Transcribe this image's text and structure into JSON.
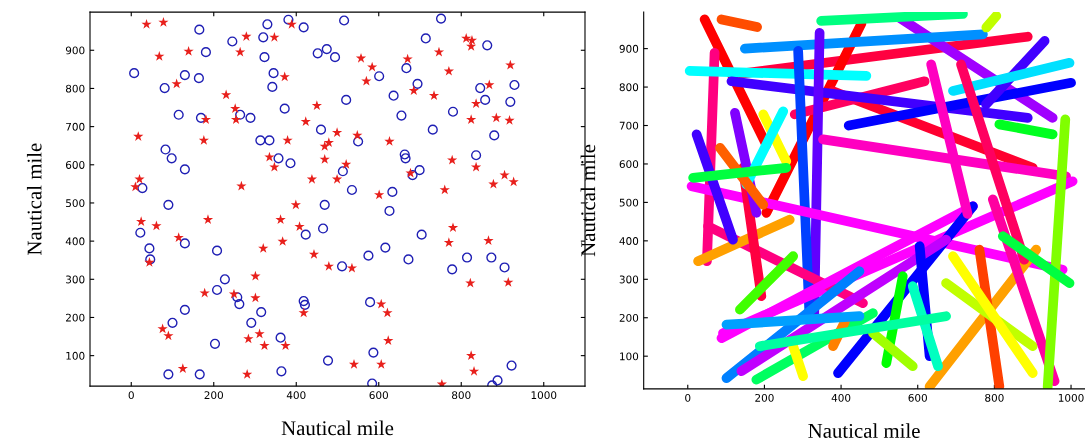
{
  "chart_data": [
    {
      "type": "scatter",
      "xlabel": "Nautical mile",
      "ylabel": "Nautical mile",
      "xlim": [
        -100,
        1100
      ],
      "ylim": [
        20,
        1000
      ],
      "xticks": [
        0,
        200,
        400,
        600,
        800,
        1000
      ],
      "yticks": [
        100,
        200,
        300,
        400,
        500,
        600,
        700,
        800,
        900
      ],
      "grid": false,
      "series": [
        {
          "type": "scatter",
          "marker": "circle",
          "color": "#1f1fb4",
          "x": [
            165,
            245,
            320,
            330,
            381,
            418,
            181,
            323,
            452,
            474,
            494,
            7,
            130,
            164,
            81,
            345,
            342,
            115,
            169,
            264,
            289,
            372,
            460,
            313,
            335,
            83,
            98,
            130,
            357,
            386,
            27,
            90,
            469,
            516,
            751,
            714,
            863,
            667,
            601,
            694,
            636,
            521,
            846,
            858,
            929,
            919,
            655,
            780,
            731,
            550,
            880,
            663,
            665,
            836,
            699,
            682,
            513,
            535,
            633,
            22,
            44,
            46,
            130,
            208,
            227,
            208,
            257,
            262,
            315,
            130,
            100,
            291,
            362,
            203,
            423,
            465,
            418,
            421,
            90,
            166,
            364,
            477,
            626,
            704,
            616,
            575,
            672,
            511,
            814,
            873,
            905,
            778,
            579,
            587,
            922,
            888,
            875,
            584
          ],
          "values": [
            954,
            923,
            934,
            968,
            980,
            960,
            895,
            882,
            892,
            903,
            882,
            840,
            835,
            827,
            801,
            840,
            804,
            731,
            723,
            731,
            723,
            747,
            692,
            664,
            664,
            640,
            617,
            588,
            617,
            604,
            539,
            495,
            495,
            978,
            983,
            931,
            913,
            853,
            832,
            812,
            781,
            770,
            801,
            770,
            809,
            765,
            729,
            739,
            692,
            661,
            677,
            627,
            617,
            625,
            586,
            573,
            583,
            534,
            529,
            422,
            381,
            352,
            394,
            375,
            300,
            272,
            253,
            235,
            214,
            220,
            186,
            186,
            147,
            131,
            417,
            433,
            243,
            233,
            51,
            51,
            59,
            87,
            479,
            417,
            383,
            362,
            352,
            334,
            357,
            357,
            331,
            326,
            240,
            108,
            74,
            35,
            22,
            27
          ]
        },
        {
          "type": "scatter",
          "marker": "star",
          "color": "#e8201c",
          "x": [
            37,
            78,
            68,
            139,
            264,
            279,
            347,
            389,
            372,
            110,
            230,
            252,
            254,
            181,
            450,
            423,
            499,
            17,
            176,
            379,
            469,
            479,
            469,
            335,
            347,
            438,
            499,
            20,
            10,
            267,
            399,
            812,
            826,
            824,
            557,
            670,
            746,
            584,
            770,
            919,
            570,
            685,
            734,
            868,
            836,
            824,
            885,
            917,
            548,
            626,
            778,
            836,
            521,
            677,
            905,
            878,
            927,
            601,
            760,
            24,
            61,
            186,
            115,
            44,
            362,
            408,
            367,
            320,
            443,
            479,
            301,
            178,
            249,
            301,
            418,
            76,
            90,
            311,
            284,
            323,
            374,
            125,
            281,
            780,
            770,
            866,
            535,
            822,
            914,
            606,
            621,
            623,
            540,
            606,
            824,
            831,
            753
          ],
          "values": [
            968,
            973,
            884,
            897,
            895,
            936,
            934,
            968,
            830,
            812,
            783,
            747,
            718,
            718,
            755,
            713,
            684,
            674,
            664,
            664,
            648,
            658,
            614,
            620,
            594,
            562,
            562,
            562,
            542,
            544,
            495,
            931,
            926,
            910,
            879,
            877,
            895,
            856,
            845,
            861,
            819,
            794,
            781,
            809,
            760,
            718,
            723,
            716,
            677,
            661,
            612,
            594,
            601,
            578,
            573,
            549,
            555,
            521,
            534,
            451,
            440,
            456,
            409,
            344,
            456,
            438,
            399,
            381,
            365,
            334,
            308,
            264,
            261,
            251,
            212,
            170,
            152,
            157,
            144,
            126,
            126,
            66,
            51,
            435,
            396,
            401,
            329,
            290,
            292,
            235,
            212,
            139,
            77,
            77,
            100,
            59,
            25
          ]
        }
      ]
    },
    {
      "type": "line",
      "xlabel": "Nautical mile",
      "ylabel": "Nautical mile",
      "xlim": [
        -115,
        1035
      ],
      "ylim": [
        15,
        995
      ],
      "xticks": [
        0,
        200,
        400,
        600,
        800,
        1000
      ],
      "yticks": [
        100,
        200,
        300,
        400,
        500,
        600,
        700,
        800,
        900
      ],
      "grid": false,
      "marker": "none",
      "line_style": "solid",
      "series": [
        {
          "x": [
            88,
            181
          ],
          "values": [
            976,
            956
          ],
          "color": "#ff4d00"
        },
        {
          "x": [
            44,
            205
          ],
          "values": [
            976,
            650
          ],
          "color": "#ff0000"
        },
        {
          "x": [
            70,
            50
          ],
          "values": [
            889,
            347
          ],
          "color": "#ff0080"
        },
        {
          "x": [
            140,
            887
          ],
          "values": [
            835,
            931
          ],
          "color": "#ff0040"
        },
        {
          "x": [
            453,
            205
          ],
          "values": [
            965,
            473
          ],
          "color": "#ff0000"
        },
        {
          "x": [
            379,
            900
          ],
          "values": [
            789,
            590
          ],
          "color": "#ff0030"
        },
        {
          "x": [
            279,
            618
          ],
          "values": [
            729,
            815
          ],
          "color": "#ff0060"
        },
        {
          "x": [
            553,
            952
          ],
          "values": [
            980,
            720
          ],
          "color": "#a000ff"
        },
        {
          "x": [
            348,
            718
          ],
          "values": [
            972,
            990
          ],
          "color": "#00ff80"
        },
        {
          "x": [
            149,
            770
          ],
          "values": [
            900,
            937
          ],
          "color": "#0090ff"
        },
        {
          "x": [
            5,
            466
          ],
          "values": [
            842,
            829
          ],
          "color": "#00ffff"
        },
        {
          "x": [
            114,
            887
          ],
          "values": [
            815,
            720
          ],
          "color": "#4000ff"
        },
        {
          "x": [
            1000,
            420
          ],
          "values": [
            811,
            700
          ],
          "color": "#0000ff"
        },
        {
          "x": [
            931,
            778
          ],
          "values": [
            920,
            755
          ],
          "color": "#4000ff"
        },
        {
          "x": [
            996,
            692
          ],
          "values": [
            863,
            790
          ],
          "color": "#00e0ff"
        },
        {
          "x": [
            344,
            330
          ],
          "values": [
            941,
            210
          ],
          "color": "#6000ff"
        },
        {
          "x": [
            288,
            318
          ],
          "values": [
            894,
            195
          ],
          "color": "#0040ff"
        },
        {
          "x": [
            353,
            987
          ],
          "values": [
            664,
            568
          ],
          "color": "#ff00c0"
        },
        {
          "x": [
            10,
            978
          ],
          "values": [
            542,
            325
          ],
          "color": "#ff00ff"
        },
        {
          "x": [
            1004,
            92
          ],
          "values": [
            555,
            160
          ],
          "color": "#ff00ff"
        },
        {
          "x": [
            53,
            457
          ],
          "values": [
            438,
            238
          ],
          "color": "#ff0080"
        },
        {
          "x": [
            88,
            744
          ],
          "values": [
            147,
            490
          ],
          "color": "#ff00ff"
        },
        {
          "x": [
            392,
            744
          ],
          "values": [
            56,
            490
          ],
          "color": "#0000ff"
        },
        {
          "x": [
            101,
            448
          ],
          "values": [
            43,
            321
          ],
          "color": "#0080ff"
        },
        {
          "x": [
            140,
            674
          ],
          "values": [
            61,
            403
          ],
          "color": "#c000ff"
        },
        {
          "x": [
            179,
            483
          ],
          "values": [
            39,
            212
          ],
          "color": "#00ff60"
        },
        {
          "x": [
            631,
            909
          ],
          "values": [
            21,
            377
          ],
          "color": "#ffa000"
        },
        {
          "x": [
            813,
            761
          ],
          "values": [
            21,
            377
          ],
          "color": "#ff4000"
        },
        {
          "x": [
            674,
            900
          ],
          "values": [
            290,
            126
          ],
          "color": "#c0ff00"
        },
        {
          "x": [
            692,
            900
          ],
          "values": [
            360,
            56
          ],
          "color": "#ffff00"
        },
        {
          "x": [
            796,
            957
          ],
          "values": [
            508,
            35
          ],
          "color": "#ff00a0"
        },
        {
          "x": [
            985,
            939
          ],
          "values": [
            716,
            20
          ],
          "color": "#80ff00"
        },
        {
          "x": [
            605,
            631
          ],
          "values": [
            386,
            100
          ],
          "color": "#0000ff"
        },
        {
          "x": [
            653,
            587
          ],
          "values": [
            74,
            282
          ],
          "color": "#00ffc0"
        },
        {
          "x": [
            27,
            266
          ],
          "values": [
            347,
            455
          ],
          "color": "#ffa000"
        },
        {
          "x": [
            144,
            192
          ],
          "values": [
            590,
            256
          ],
          "color": "#ff0040"
        },
        {
          "x": [
            635,
            730
          ],
          "values": [
            859,
            470
          ],
          "color": "#ff00c0"
        },
        {
          "x": [
            713,
            878
          ],
          "values": [
            859,
            351
          ],
          "color": "#ff0060"
        },
        {
          "x": [
            813,
            952
          ],
          "values": [
            703,
            677
          ],
          "color": "#00ff20"
        },
        {
          "x": [
            996,
            822
          ],
          "values": [
            290,
            412
          ],
          "color": "#00ff40"
        },
        {
          "x": [
            23,
            118
          ],
          "values": [
            677,
            403
          ],
          "color": "#4000ff"
        },
        {
          "x": [
            123,
            179
          ],
          "values": [
            733,
            473
          ],
          "color": "#8000ff"
        },
        {
          "x": [
            197,
            257
          ],
          "values": [
            729,
            607
          ],
          "color": "#ffff00"
        },
        {
          "x": [
            249,
            153
          ],
          "values": [
            737,
            547
          ],
          "color": "#00ffff"
        },
        {
          "x": [
            84,
            197
          ],
          "values": [
            642,
            494
          ],
          "color": "#ff6000"
        },
        {
          "x": [
            14,
            257
          ],
          "values": [
            564,
            590
          ],
          "color": "#00ff40"
        },
        {
          "x": [
            379,
            410
          ],
          "values": [
            126,
            190
          ],
          "color": "#ff8000"
        },
        {
          "x": [
            518,
            561
          ],
          "values": [
            82,
            308
          ],
          "color": "#00ff00"
        },
        {
          "x": [
            483,
            587
          ],
          "values": [
            160,
            74
          ],
          "color": "#a0ff00"
        },
        {
          "x": [
            301,
            275
          ],
          "values": [
            48,
            126
          ],
          "color": "#ffff00"
        },
        {
          "x": [
            188,
            674
          ],
          "values": [
            126,
            204
          ],
          "color": "#00ffa0"
        },
        {
          "x": [
            101,
            448
          ],
          "values": [
            182,
            204
          ],
          "color": "#00a0ff"
        },
        {
          "x": [
            136,
            275
          ],
          "values": [
            221,
            360
          ],
          "color": "#40ff00"
        },
        {
          "x": [
            805,
            779
          ],
          "values": [
            985,
            955
          ],
          "color": "#c0ff00"
        }
      ]
    }
  ]
}
